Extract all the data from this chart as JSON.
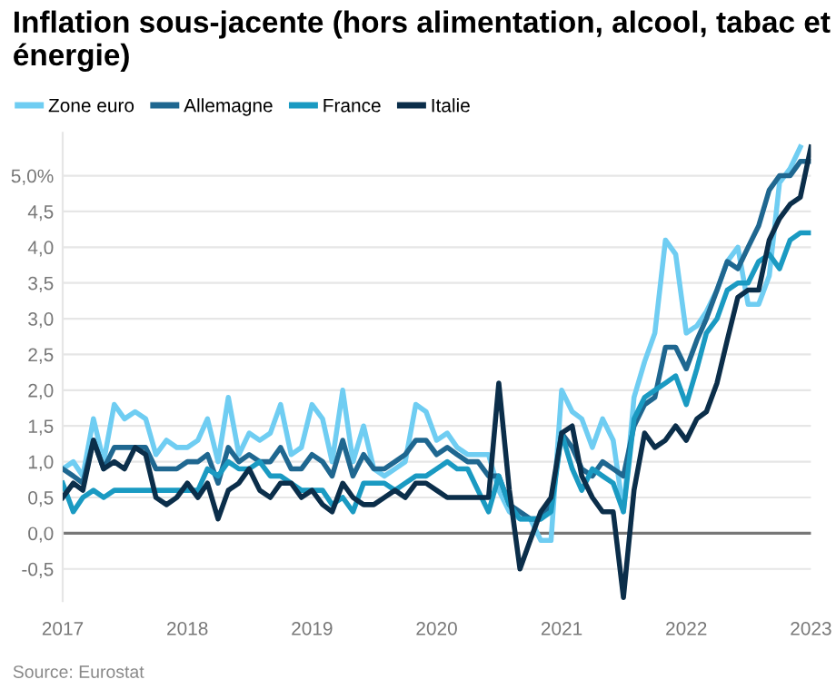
{
  "chart_data": {
    "type": "line",
    "title": "Inflation sous-jacente (hors alimentation, alcool, tabac et énergie)",
    "annotations": [
      "Source: Eurostat"
    ],
    "x": [
      "2017-01",
      "2017-02",
      "2017-03",
      "2017-04",
      "2017-05",
      "2017-06",
      "2017-07",
      "2017-08",
      "2017-09",
      "2017-10",
      "2017-11",
      "2017-12",
      "2018-01",
      "2018-02",
      "2018-03",
      "2018-04",
      "2018-05",
      "2018-06",
      "2018-07",
      "2018-08",
      "2018-09",
      "2018-10",
      "2018-11",
      "2018-12",
      "2019-01",
      "2019-02",
      "2019-03",
      "2019-04",
      "2019-05",
      "2019-06",
      "2019-07",
      "2019-08",
      "2019-09",
      "2019-10",
      "2019-11",
      "2019-12",
      "2020-01",
      "2020-02",
      "2020-03",
      "2020-04",
      "2020-05",
      "2020-06",
      "2020-07",
      "2020-08",
      "2020-09",
      "2020-10",
      "2020-11",
      "2020-12",
      "2021-01",
      "2021-02",
      "2021-03",
      "2021-04",
      "2021-05",
      "2021-06",
      "2021-07",
      "2021-08",
      "2021-09",
      "2021-10",
      "2021-11",
      "2021-12",
      "2022-01",
      "2022-02",
      "2022-03",
      "2022-04",
      "2022-05",
      "2022-06",
      "2022-07",
      "2022-08",
      "2022-09",
      "2022-10",
      "2022-11",
      "2022-12",
      "2023-01"
    ],
    "series": [
      {
        "name": "Zone euro",
        "color": "#6fcdf2",
        "values": [
          0.9,
          1.0,
          0.8,
          1.6,
          1.0,
          1.8,
          1.6,
          1.7,
          1.6,
          1.1,
          1.3,
          1.2,
          1.2,
          1.3,
          1.6,
          1.0,
          1.9,
          1.1,
          1.4,
          1.3,
          1.4,
          1.8,
          1.1,
          1.2,
          1.8,
          1.6,
          1.0,
          2.0,
          1.0,
          1.5,
          0.9,
          0.8,
          0.9,
          1.0,
          1.8,
          1.7,
          1.3,
          1.4,
          1.2,
          1.1,
          1.1,
          1.1,
          0.6,
          0.3,
          0.2,
          0.2,
          -0.1,
          -0.1,
          2.0,
          1.7,
          1.6,
          1.2,
          1.6,
          1.3,
          0.3,
          1.9,
          2.4,
          2.8,
          4.1,
          3.9,
          2.8,
          2.9,
          3.1,
          3.4,
          3.8,
          4.0,
          3.2,
          3.2,
          3.6,
          4.9,
          5.1,
          5.4,
          null
        ]
      },
      {
        "name": "Allemagne",
        "color": "#1f6790",
        "values": [
          0.9,
          0.8,
          0.7,
          1.3,
          0.9,
          1.2,
          1.2,
          1.2,
          1.2,
          0.9,
          0.9,
          0.9,
          1.0,
          1.0,
          1.1,
          0.7,
          1.2,
          1.0,
          1.1,
          1.0,
          1.0,
          1.2,
          0.9,
          0.9,
          1.1,
          1.0,
          0.8,
          1.3,
          0.8,
          1.1,
          0.9,
          0.9,
          1.0,
          1.1,
          1.3,
          1.3,
          1.1,
          1.2,
          1.1,
          1.0,
          1.0,
          0.8,
          0.8,
          0.4,
          0.3,
          0.2,
          0.2,
          0.4,
          1.4,
          1.2,
          0.9,
          0.8,
          1.0,
          0.9,
          0.8,
          1.5,
          1.8,
          1.9,
          2.6,
          2.6,
          2.3,
          2.7,
          3.0,
          3.4,
          3.8,
          3.7,
          4.0,
          4.3,
          4.8,
          5.0,
          5.0,
          5.2,
          5.2
        ]
      },
      {
        "name": "France",
        "color": "#1a9ac2",
        "values": [
          0.7,
          0.3,
          0.5,
          0.6,
          0.5,
          0.6,
          0.6,
          0.6,
          0.6,
          0.6,
          0.6,
          0.6,
          0.6,
          0.6,
          0.9,
          0.8,
          1.0,
          0.9,
          0.9,
          1.0,
          0.8,
          0.8,
          0.7,
          0.6,
          0.6,
          0.6,
          0.4,
          0.5,
          0.3,
          0.7,
          0.7,
          0.7,
          0.6,
          0.7,
          0.8,
          0.8,
          0.9,
          1.0,
          0.9,
          0.9,
          0.6,
          0.3,
          0.8,
          0.4,
          0.2,
          0.2,
          0.2,
          0.3,
          1.4,
          0.9,
          0.6,
          0.9,
          0.8,
          0.7,
          0.3,
          1.6,
          1.9,
          2.0,
          2.1,
          2.2,
          1.8,
          2.3,
          2.8,
          3.0,
          3.4,
          3.5,
          3.5,
          3.8,
          3.9,
          3.7,
          4.1,
          4.2,
          4.2
        ]
      },
      {
        "name": "Italie",
        "color": "#0b2e4a",
        "values": [
          0.5,
          0.7,
          0.6,
          1.3,
          0.9,
          1.0,
          0.9,
          1.2,
          1.1,
          0.5,
          0.4,
          0.5,
          0.7,
          0.5,
          0.7,
          0.2,
          0.6,
          0.7,
          0.9,
          0.6,
          0.5,
          0.7,
          0.7,
          0.5,
          0.6,
          0.4,
          0.3,
          0.7,
          0.5,
          0.4,
          0.4,
          0.5,
          0.6,
          0.5,
          0.7,
          0.7,
          0.6,
          0.5,
          0.5,
          0.5,
          0.5,
          0.5,
          2.1,
          0.6,
          -0.5,
          -0.1,
          0.3,
          0.5,
          1.4,
          1.5,
          0.8,
          0.5,
          0.3,
          0.3,
          -0.9,
          0.6,
          1.4,
          1.2,
          1.3,
          1.5,
          1.3,
          1.6,
          1.7,
          2.1,
          2.7,
          3.3,
          3.4,
          3.4,
          4.1,
          4.4,
          4.6,
          4.7,
          5.4
        ]
      }
    ],
    "xlim": [
      "2017-01",
      "2023-01"
    ],
    "xticks": [
      {
        "value": "2017-01",
        "label": "2017"
      },
      {
        "value": "2018-01",
        "label": "2018"
      },
      {
        "value": "2019-01",
        "label": "2019"
      },
      {
        "value": "2020-01",
        "label": "2020"
      },
      {
        "value": "2021-01",
        "label": "2021"
      },
      {
        "value": "2022-01",
        "label": "2022"
      },
      {
        "value": "2023-01",
        "label": "2023"
      }
    ],
    "ylim": [
      -0.95,
      5.6
    ],
    "yticks": [
      {
        "value": -0.5,
        "label": "-0,5"
      },
      {
        "value": 0,
        "label": "0,0"
      },
      {
        "value": 0.5,
        "label": "0,5"
      },
      {
        "value": 1.0,
        "label": "1,0"
      },
      {
        "value": 1.5,
        "label": "1,5"
      },
      {
        "value": 2.0,
        "label": "2,0"
      },
      {
        "value": 2.5,
        "label": "2,5"
      },
      {
        "value": 3.0,
        "label": "3,0"
      },
      {
        "value": 3.5,
        "label": "3,5"
      },
      {
        "value": 4.0,
        "label": "4,0"
      },
      {
        "value": 4.5,
        "label": "4,5"
      },
      {
        "value": 5.0,
        "label": "5,0%"
      }
    ],
    "ref_lines": [
      {
        "axis": "y",
        "value": 0,
        "color": "#777777"
      }
    ],
    "grid": "y",
    "legend": "top left",
    "marker": "none",
    "line_style": "solid"
  }
}
